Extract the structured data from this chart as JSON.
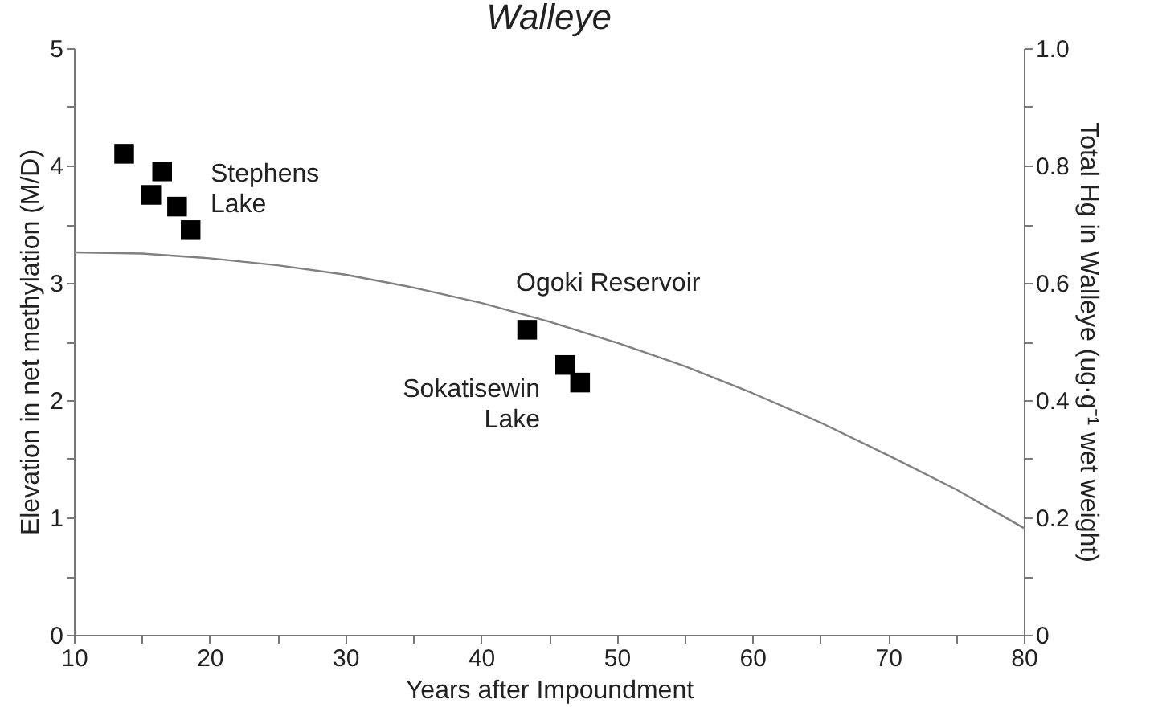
{
  "chart_data": {
    "type": "line",
    "title": "Walleye",
    "xlabel": "Years after Impoundment",
    "ylabel": "Elevation in net methylation (M/D)",
    "y2label": "Total Hg in Walleye (ug·g⁻¹ wet weight)",
    "xlim": [
      10,
      80
    ],
    "xticks": [
      10,
      {
        "value": 15,
        "label": null
      },
      20,
      {
        "value": 25,
        "label": null
      },
      30,
      {
        "value": 35,
        "label": null
      },
      40,
      {
        "value": 45,
        "label": null
      },
      50,
      {
        "value": 55,
        "label": null
      },
      60,
      {
        "value": 65,
        "label": null
      },
      70,
      {
        "value": 75,
        "label": null
      },
      80
    ],
    "ylim": [
      0,
      5
    ],
    "yticks": [
      0,
      {
        "value": 0.5,
        "label": null
      },
      1,
      {
        "value": 1.5,
        "label": null
      },
      2,
      {
        "value": 2.5,
        "label": null
      },
      3,
      {
        "value": 3.5,
        "label": null
      },
      4,
      {
        "value": 4.5,
        "label": null
      },
      5
    ],
    "y2lim": [
      0,
      1
    ],
    "y2ticks": [
      0,
      {
        "value": 0.1,
        "label": null
      },
      0.2,
      {
        "value": 0.3,
        "label": null
      },
      0.4,
      {
        "value": 0.5,
        "label": null
      },
      0.6,
      {
        "value": 0.7,
        "label": null
      },
      0.8,
      {
        "value": 0.9,
        "label": null
      },
      {
        "value": 1,
        "label": "1.0"
      }
    ],
    "grid": false,
    "series": [
      {
        "color": "#808080",
        "marker": "none",
        "line_style": "solid",
        "x": [
          10,
          15,
          20,
          25,
          30,
          35,
          40,
          45,
          50,
          55,
          60,
          65,
          70,
          75,
          80
        ],
        "values": [
          3.26,
          3.25,
          3.21,
          3.15,
          3.07,
          2.96,
          2.83,
          2.67,
          2.49,
          2.29,
          2.06,
          1.81,
          1.53,
          1.24,
          0.91
        ]
      },
      {
        "type": "scatter",
        "axis": "y2",
        "color": "#000000",
        "marker": "square",
        "x": [
          13.7,
          16.5,
          15.7,
          17.6,
          18.6,
          43.4,
          46.2,
          47.3
        ],
        "values": [
          0.82,
          0.79,
          0.75,
          0.73,
          0.69,
          0.52,
          0.46,
          0.43
        ]
      }
    ],
    "annotations": [
      "Stephens\nLake",
      "Ogoki Reservoir",
      "Sokatisewin\nLake"
    ]
  }
}
